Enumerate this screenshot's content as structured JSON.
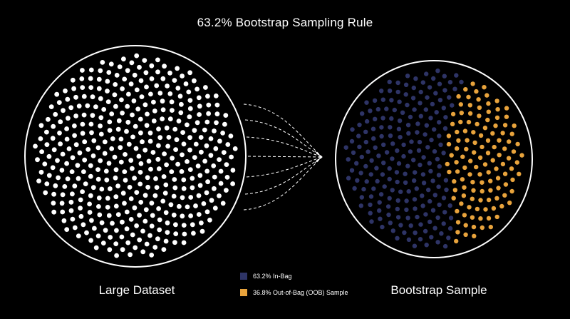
{
  "title": "63.2% Bootstrap Sampling Rule",
  "left_caption": "Large Dataset",
  "right_caption": "Bootstrap Sample",
  "legend": [
    {
      "label": "63.2% In-Bag",
      "color": "#2e3466"
    },
    {
      "label": "36.8% Out-of-Bag (OOB) Sample",
      "color": "#e8a33c"
    }
  ],
  "colors": {
    "background": "#000000",
    "outline": "#ffffff",
    "dataset_dot": "#ffffff",
    "in_bag": "#2e3466",
    "oob": "#e8a33c",
    "arrow": "#ffffff"
  },
  "in_bag_fraction": 0.632,
  "oob_fraction": 0.368
}
